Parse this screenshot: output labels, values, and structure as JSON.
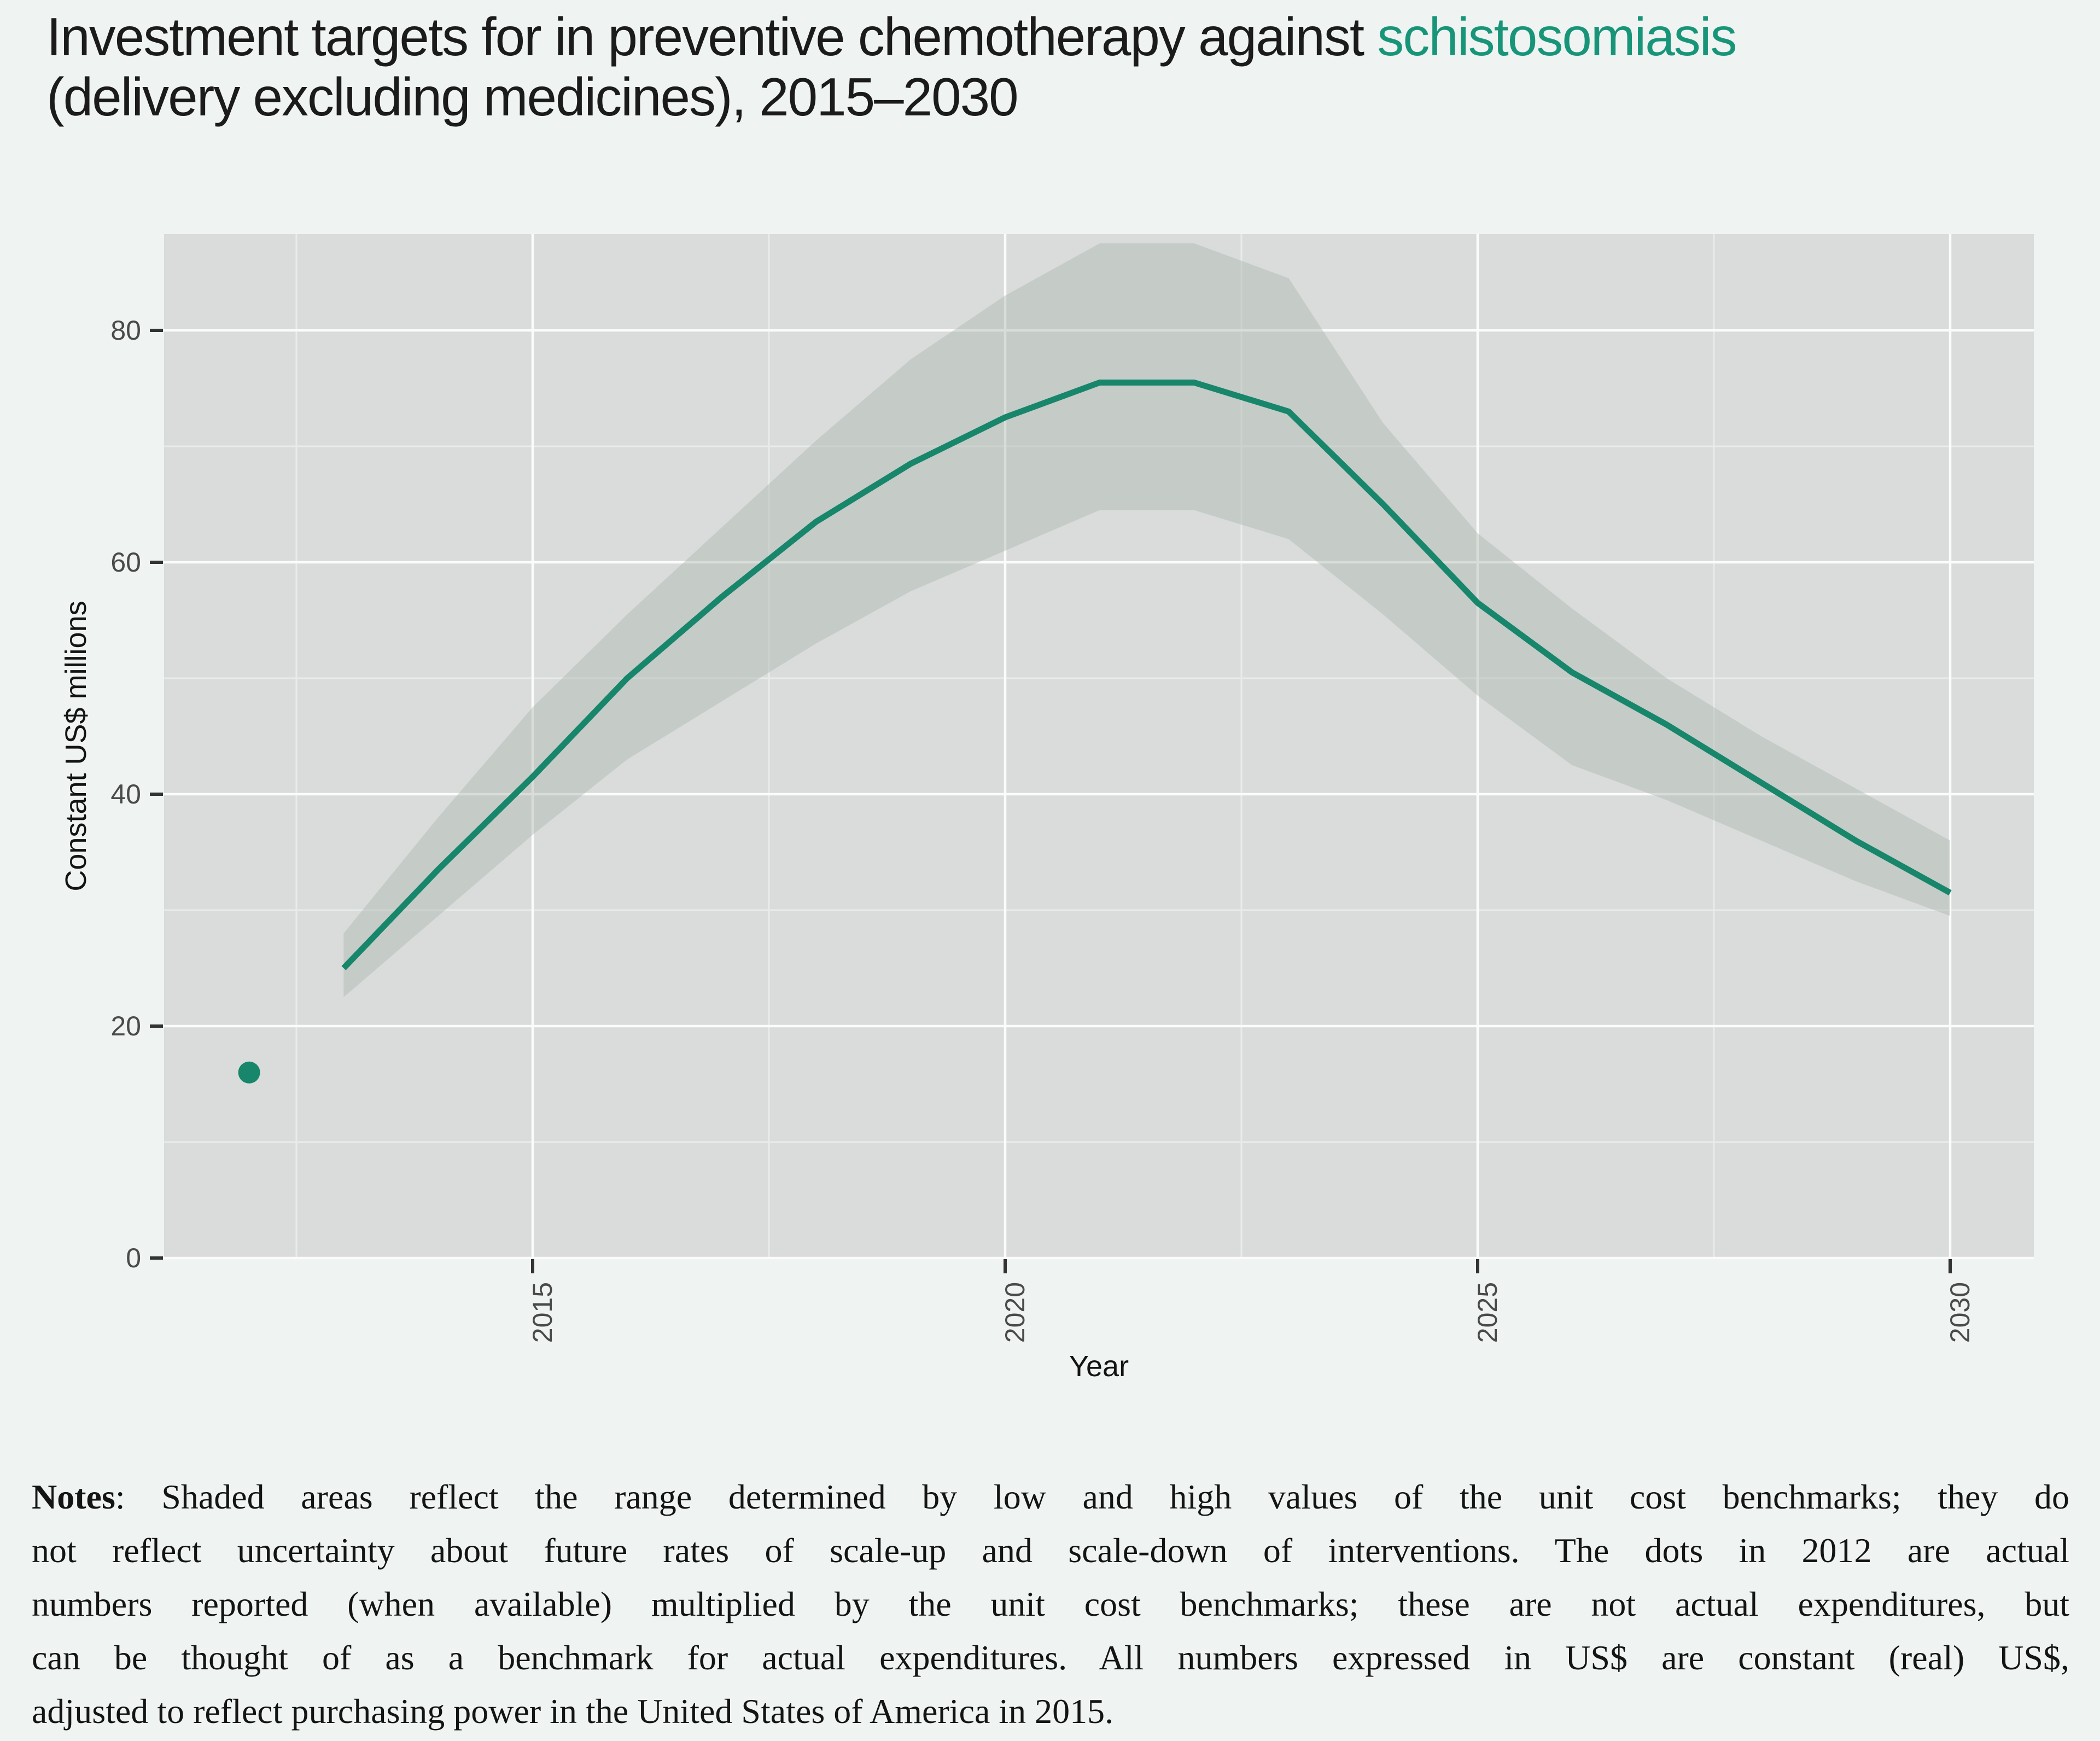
{
  "title": {
    "line1_prefix": "Investment targets for in preventive chemotherapy against ",
    "line1_accent": "schistosomiasis",
    "line2": "(delivery excluding medicines), 2015–2030"
  },
  "chart_data": {
    "type": "line",
    "title": "Investment targets for in preventive chemotherapy against schistosomiasis (delivery excluding medicines), 2015–2030",
    "xlabel": "Year",
    "ylabel": "Constant US$ millions",
    "x_ticks": [
      2015,
      2020,
      2025,
      2030
    ],
    "x_minor_ticks": [
      2012.5,
      2017.5,
      2022.5,
      2027.5
    ],
    "y_ticks": [
      0,
      20,
      40,
      60,
      80
    ],
    "y_minor_ticks": [
      10,
      30,
      50,
      70
    ],
    "xlim": [
      2011.1,
      2030.9
    ],
    "ylim": [
      0,
      88.3
    ],
    "grid": true,
    "legend_position": "none",
    "actual_2012_point": {
      "year": 2012,
      "value": 16
    },
    "years": [
      2013,
      2014,
      2015,
      2016,
      2017,
      2018,
      2019,
      2020,
      2021,
      2022,
      2023,
      2024,
      2025,
      2026,
      2027,
      2028,
      2029,
      2030
    ],
    "series": [
      {
        "name": "investment_target",
        "values": [
          25,
          33.5,
          41.5,
          50,
          57,
          63.5,
          68.5,
          72.5,
          75.5,
          75.5,
          73,
          65,
          56.5,
          50.5,
          46,
          41,
          36,
          31.5
        ]
      },
      {
        "name": "band_low",
        "values": [
          22.5,
          29.5,
          36.5,
          43,
          48,
          53,
          57.5,
          61,
          64.5,
          64.5,
          62,
          55.5,
          48.5,
          42.5,
          39.5,
          36,
          32.5,
          29.5
        ]
      },
      {
        "name": "band_high",
        "values": [
          28,
          38,
          47.5,
          55.5,
          63,
          70.5,
          77.5,
          83,
          87.5,
          87.5,
          84.5,
          72,
          62.5,
          56,
          50,
          45,
          40.5,
          36
        ]
      }
    ]
  },
  "colors": {
    "background": "#eff3f1",
    "panel": "#d9dcda",
    "grid_major": "#fafbfa",
    "grid_minor": "#e7ebe9",
    "band": "#a8b1aa",
    "band_opacity": "0.40",
    "line": "#17866b",
    "point": "#17866b",
    "tick": "#333333",
    "tick_label": "#4a4a4a",
    "axis_title": "#131313",
    "title_text": "#1b1b1b",
    "title_accent": "#189579",
    "notes_text": "#141414"
  },
  "notes": {
    "label": "Notes",
    "lines": [
      ": Shaded areas reflect the range determined by low and high values of the unit cost benchmarks; they do",
      "not reflect uncertainty about future rates of scale-up and scale-down of interventions. The dots in 2012 are actual",
      "numbers reported (when available) multiplied by the unit cost benchmarks; these are not actual expenditures, but",
      "can be thought of as a benchmark for actual expenditures. All numbers expressed in US$ are constant (real) US$,",
      "adjusted to reflect purchasing power in the United States of America in 2015."
    ]
  }
}
